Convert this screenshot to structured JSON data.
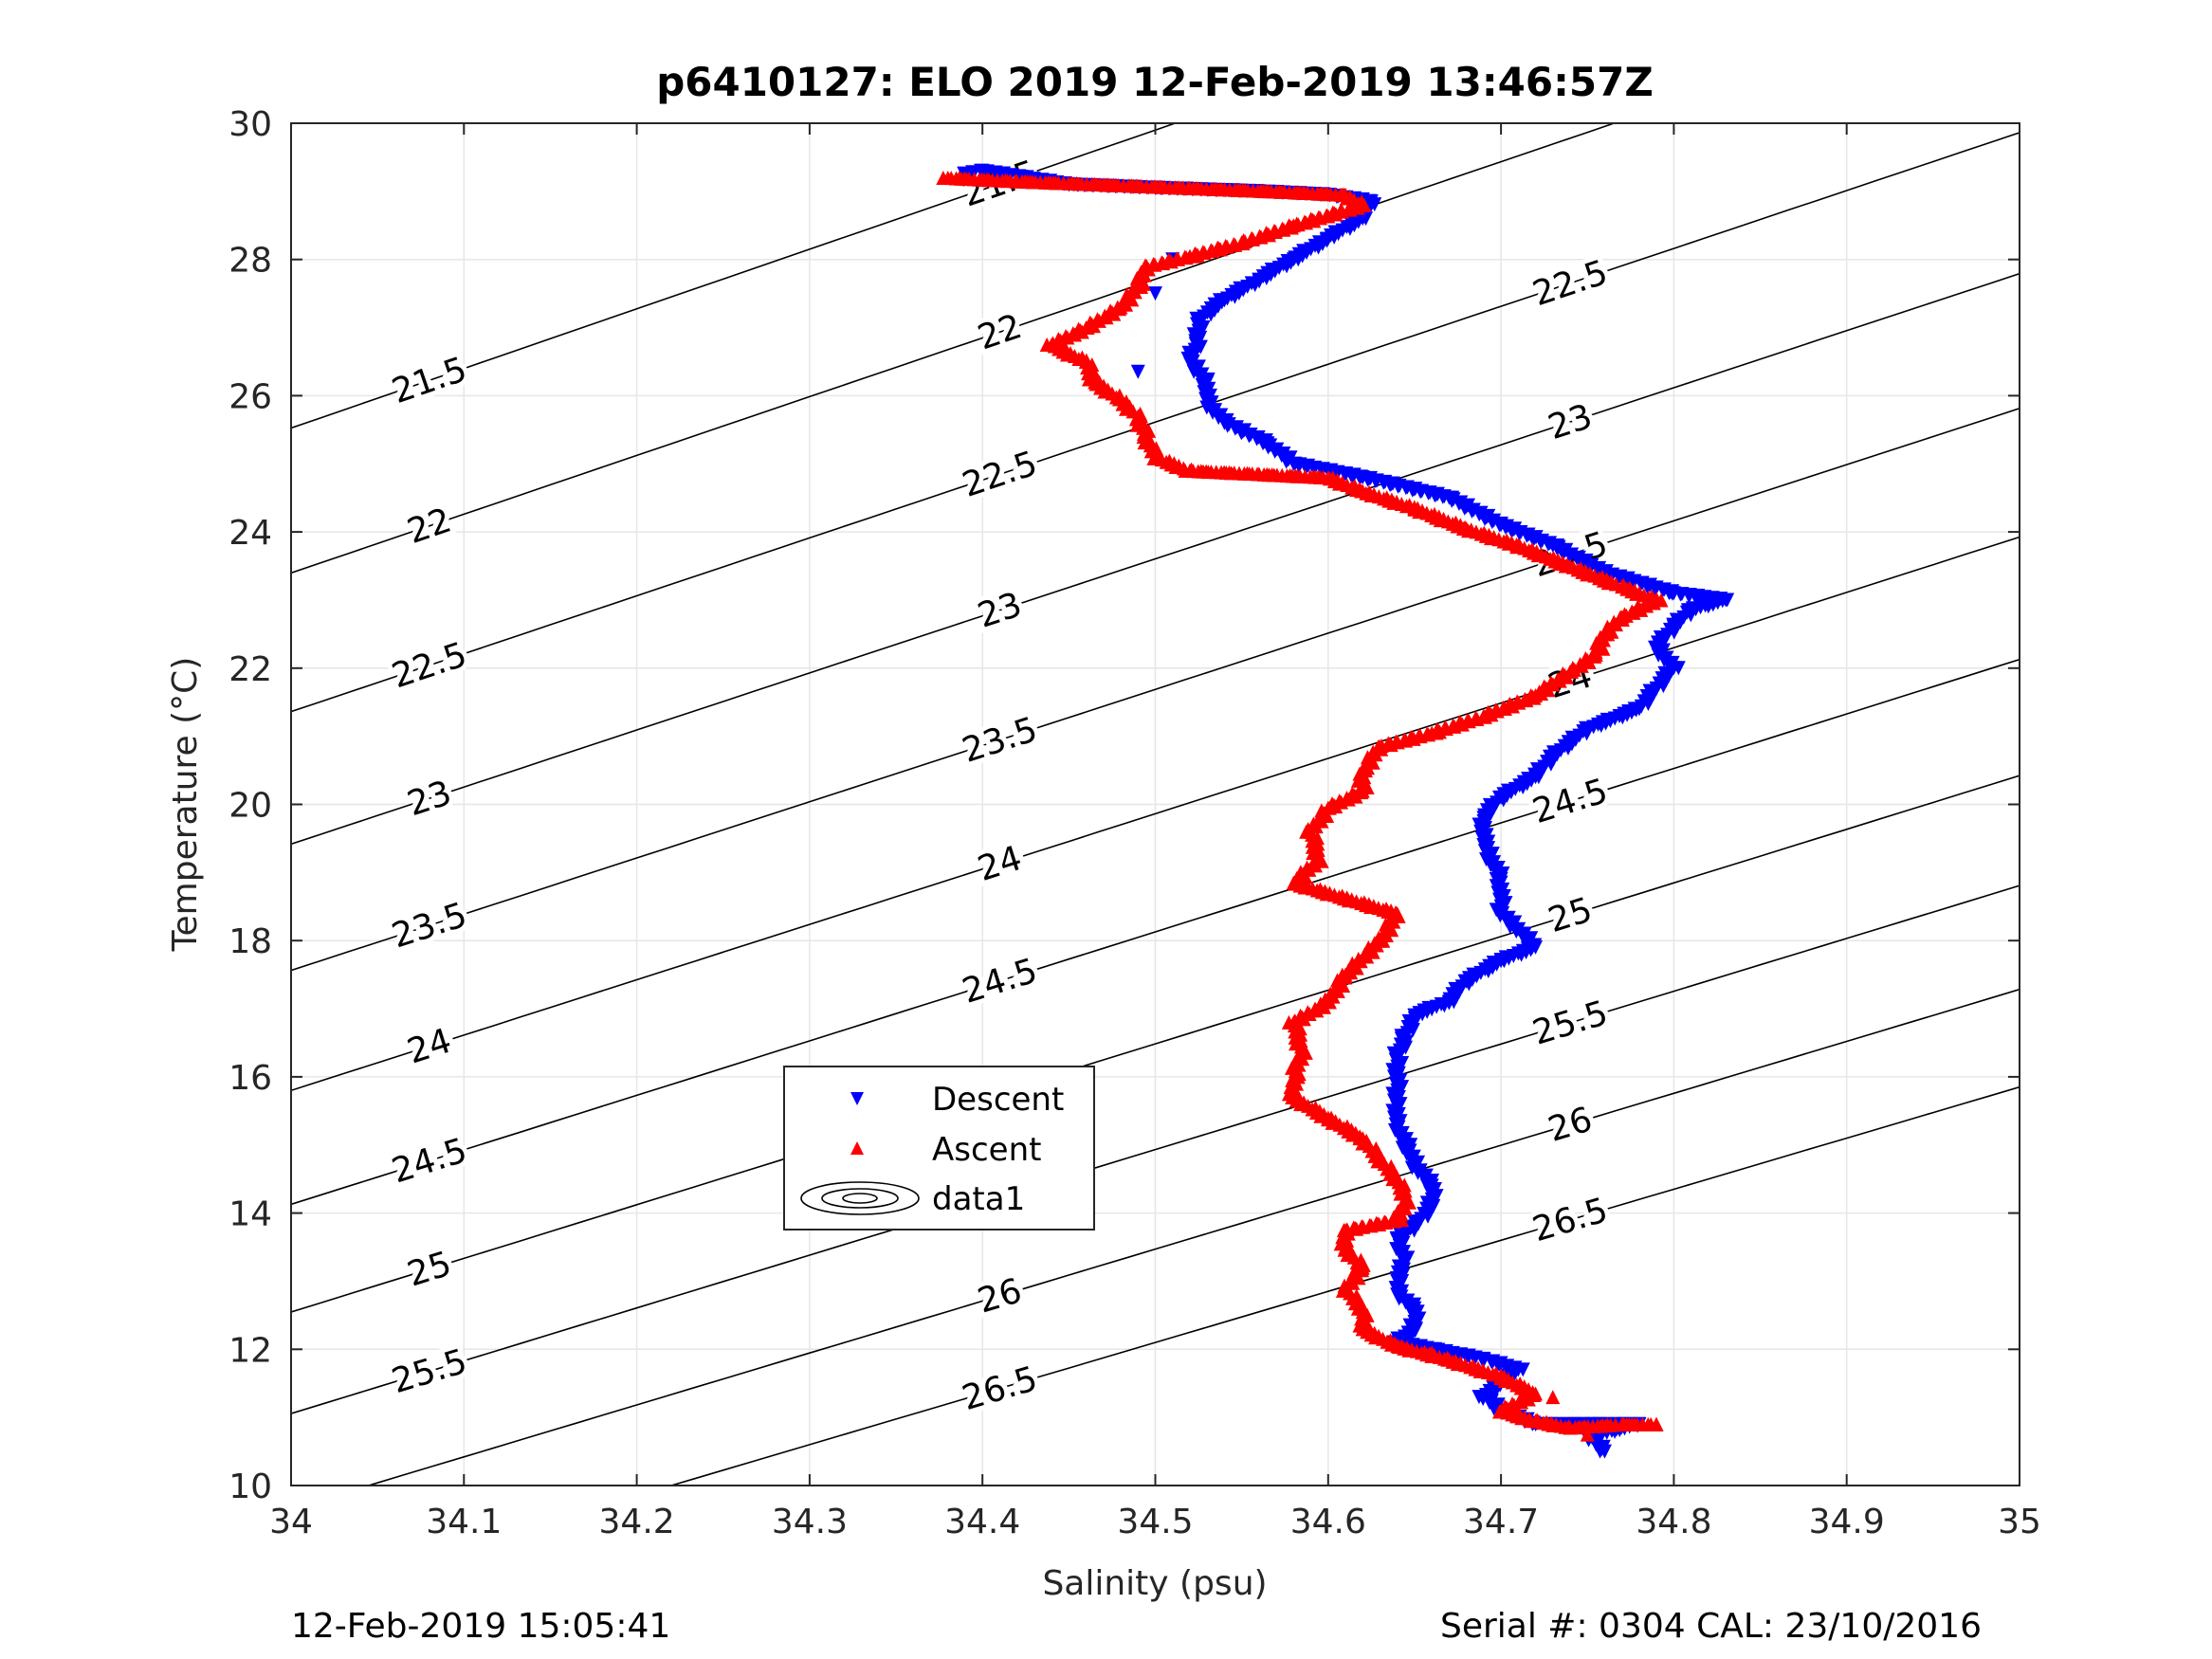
{
  "chart_data": {
    "type": "scatter",
    "title": "p6410127: ELO 2019 12-Feb-2019 13:46:57Z",
    "xlabel": "Salinity (psu)",
    "ylabel": "Temperature (°C)",
    "xlim": [
      34,
      35
    ],
    "ylim": [
      10,
      30
    ],
    "xticks": [
      "34",
      "34.1",
      "34.2",
      "34.3",
      "34.4",
      "34.5",
      "34.6",
      "34.7",
      "34.8",
      "34.9",
      "35"
    ],
    "yticks": [
      "10",
      "12",
      "14",
      "16",
      "18",
      "20",
      "22",
      "24",
      "26",
      "28",
      "30"
    ],
    "grid": true,
    "legend_position": "center-left",
    "legend": [
      "Descent",
      "Ascent",
      "data1"
    ],
    "contours": {
      "levels": [
        21.5,
        22,
        22.5,
        23,
        23.5,
        24,
        24.5,
        25,
        25.5,
        26,
        26.5
      ],
      "labels": [
        "21.5",
        "22",
        "22.5",
        "23",
        "23.5",
        "24",
        "24.5",
        "25",
        "25.5",
        "26",
        "26.5"
      ],
      "color": "#000000"
    },
    "series": [
      {
        "name": "Descent",
        "marker": "triangle-down",
        "color": "#0000ff",
        "points": [
          [
            34.76,
            10.5
          ],
          [
            34.755,
            10.6
          ],
          [
            34.75,
            10.7
          ],
          [
            34.78,
            10.9
          ],
          [
            34.75,
            10.9
          ],
          [
            34.72,
            10.9
          ],
          [
            34.7,
            11.1
          ],
          [
            34.69,
            11.3
          ],
          [
            34.7,
            11.5
          ],
          [
            34.71,
            11.7
          ],
          [
            34.69,
            11.85
          ],
          [
            34.66,
            12.0
          ],
          [
            34.64,
            12.1
          ],
          [
            34.65,
            12.3
          ],
          [
            34.65,
            12.6
          ],
          [
            34.64,
            12.8
          ],
          [
            34.64,
            13.0
          ],
          [
            34.645,
            13.3
          ],
          [
            34.64,
            13.6
          ],
          [
            34.65,
            13.8
          ],
          [
            34.66,
            14.1
          ],
          [
            34.66,
            14.4
          ],
          [
            34.65,
            14.7
          ],
          [
            34.645,
            15.0
          ],
          [
            34.64,
            15.3
          ],
          [
            34.64,
            15.6
          ],
          [
            34.64,
            16.0
          ],
          [
            34.64,
            16.3
          ],
          [
            34.645,
            16.6
          ],
          [
            34.65,
            16.9
          ],
          [
            34.67,
            17.1
          ],
          [
            34.68,
            17.4
          ],
          [
            34.7,
            17.7
          ],
          [
            34.72,
            17.9
          ],
          [
            34.7,
            18.4
          ],
          [
            34.7,
            18.9
          ],
          [
            34.69,
            19.4
          ],
          [
            34.69,
            19.8
          ],
          [
            34.7,
            20.1
          ],
          [
            34.72,
            20.4
          ],
          [
            34.73,
            20.7
          ],
          [
            34.75,
            21.1
          ],
          [
            34.78,
            21.4
          ],
          [
            34.79,
            21.7
          ],
          [
            34.8,
            22.0
          ],
          [
            34.79,
            22.3
          ],
          [
            34.8,
            22.6
          ],
          [
            34.81,
            22.85
          ],
          [
            34.83,
            23.0
          ],
          [
            34.8,
            23.1
          ],
          [
            34.76,
            23.4
          ],
          [
            34.73,
            23.8
          ],
          [
            34.7,
            24.1
          ],
          [
            34.67,
            24.5
          ],
          [
            34.62,
            24.8
          ],
          [
            34.58,
            25.0
          ],
          [
            34.565,
            25.3
          ],
          [
            34.54,
            25.6
          ],
          [
            34.53,
            25.9
          ],
          [
            34.53,
            26.2
          ],
          [
            34.52,
            26.5
          ],
          [
            34.525,
            26.8
          ],
          [
            34.525,
            27.1
          ],
          [
            34.54,
            27.4
          ],
          [
            34.56,
            27.7
          ],
          [
            34.58,
            28.0
          ],
          [
            34.6,
            28.3
          ],
          [
            34.62,
            28.6
          ],
          [
            34.625,
            28.85
          ],
          [
            34.6,
            28.95
          ],
          [
            34.56,
            29.0
          ],
          [
            34.5,
            29.05
          ],
          [
            34.45,
            29.1
          ],
          [
            34.4,
            29.3
          ],
          [
            34.39,
            29.25
          ],
          [
            34.51,
            28.0
          ],
          [
            34.5,
            27.5
          ],
          [
            34.49,
            26.35
          ]
        ]
      },
      {
        "name": "Ascent",
        "marker": "triangle-up",
        "color": "#ff0000",
        "points": [
          [
            34.38,
            29.2
          ],
          [
            34.42,
            29.15
          ],
          [
            34.47,
            29.1
          ],
          [
            34.52,
            29.05
          ],
          [
            34.57,
            29.0
          ],
          [
            34.61,
            28.95
          ],
          [
            34.62,
            28.8
          ],
          [
            34.58,
            28.5
          ],
          [
            34.55,
            28.25
          ],
          [
            34.52,
            28.05
          ],
          [
            34.495,
            27.9
          ],
          [
            34.49,
            27.6
          ],
          [
            34.48,
            27.3
          ],
          [
            34.46,
            27.0
          ],
          [
            34.44,
            26.75
          ],
          [
            34.46,
            26.5
          ],
          [
            34.465,
            26.2
          ],
          [
            34.48,
            25.95
          ],
          [
            34.49,
            25.7
          ],
          [
            34.495,
            25.4
          ],
          [
            34.5,
            25.1
          ],
          [
            34.52,
            24.9
          ],
          [
            34.56,
            24.85
          ],
          [
            34.6,
            24.8
          ],
          [
            34.62,
            24.6
          ],
          [
            34.65,
            24.35
          ],
          [
            34.68,
            24.05
          ],
          [
            34.71,
            23.8
          ],
          [
            34.74,
            23.5
          ],
          [
            34.77,
            23.2
          ],
          [
            34.79,
            23.0
          ],
          [
            34.77,
            22.75
          ],
          [
            34.76,
            22.5
          ],
          [
            34.755,
            22.2
          ],
          [
            34.74,
            21.95
          ],
          [
            34.72,
            21.6
          ],
          [
            34.69,
            21.3
          ],
          [
            34.66,
            21.05
          ],
          [
            34.63,
            20.85
          ],
          [
            34.62,
            20.5
          ],
          [
            34.62,
            20.2
          ],
          [
            34.6,
            19.95
          ],
          [
            34.59,
            19.6
          ],
          [
            34.595,
            19.2
          ],
          [
            34.58,
            18.85
          ],
          [
            34.64,
            18.4
          ],
          [
            34.63,
            18.0
          ],
          [
            34.61,
            17.5
          ],
          [
            34.6,
            17.1
          ],
          [
            34.58,
            16.8
          ],
          [
            34.585,
            16.4
          ],
          [
            34.58,
            16.0
          ],
          [
            34.58,
            15.7
          ],
          [
            34.6,
            15.4
          ],
          [
            34.62,
            15.1
          ],
          [
            34.63,
            14.8
          ],
          [
            34.64,
            14.5
          ],
          [
            34.645,
            14.2
          ],
          [
            34.64,
            13.9
          ],
          [
            34.61,
            13.75
          ],
          [
            34.61,
            13.5
          ],
          [
            34.62,
            13.2
          ],
          [
            34.61,
            12.9
          ],
          [
            34.62,
            12.6
          ],
          [
            34.62,
            12.3
          ],
          [
            34.64,
            12.05
          ],
          [
            34.67,
            11.85
          ],
          [
            34.7,
            11.6
          ],
          [
            34.72,
            11.35
          ],
          [
            34.7,
            11.1
          ],
          [
            34.72,
            10.95
          ],
          [
            34.74,
            10.85
          ],
          [
            34.77,
            10.9
          ],
          [
            34.79,
            10.9
          ],
          [
            34.75,
            10.75
          ],
          [
            34.73,
            11.3
          ],
          [
            34.66,
            11.95
          ]
        ]
      }
    ]
  },
  "footer": {
    "left": "12-Feb-2019 15:05:41",
    "right": "Serial #: 0304  CAL: 23/10/2016"
  }
}
